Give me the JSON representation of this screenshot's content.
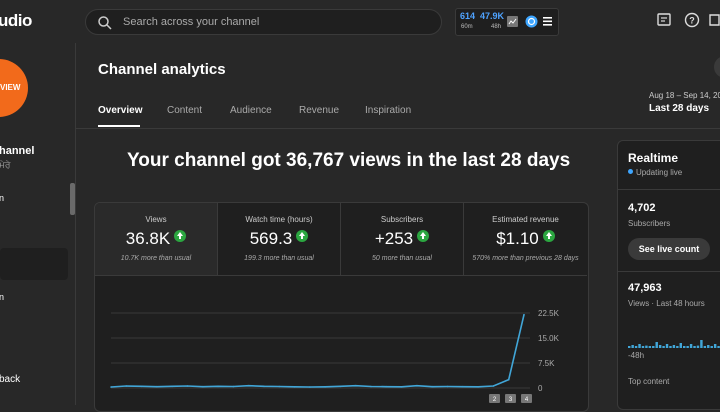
{
  "header": {
    "logo_text": "udio",
    "search_placeholder": "Search across your channel",
    "stats_widget": {
      "value1": "614",
      "label1": "60m",
      "value2": "47.9K",
      "label2": "48h"
    },
    "icons": [
      "search-icon",
      "chart-icon",
      "globe-icon",
      "menu-icon",
      "feedback-icon",
      "help-icon",
      "more-icon"
    ]
  },
  "sidebar": {
    "avatar_text": "VIEW",
    "channel_name": "hannel",
    "channel_sub": "ਮੇਰੇ",
    "item_a": "n",
    "item_b": "n",
    "item_c": "back"
  },
  "page": {
    "title": "Channel analytics",
    "tabs": [
      {
        "label": "Overview"
      },
      {
        "label": "Content"
      },
      {
        "label": "Audience"
      },
      {
        "label": "Revenue"
      },
      {
        "label": "Inspiration"
      }
    ],
    "date_range": "Aug 18 – Sep 14, 20",
    "date_period": "Last 28 days",
    "headline": "Your channel got 36,767 views in the last 28 days"
  },
  "metrics": [
    {
      "label": "Views",
      "value": "36.8K",
      "sub": "10.7K more than usual"
    },
    {
      "label": "Watch time (hours)",
      "value": "569.3",
      "sub": "199.3 more than usual"
    },
    {
      "label": "Subscribers",
      "value": "+253",
      "sub": "50 more than usual"
    },
    {
      "label": "Estimated revenue",
      "value": "$1.10",
      "sub": "570% more than previous 28 days"
    }
  ],
  "chart_data": {
    "type": "line",
    "ylim": [
      0,
      22500
    ],
    "yticks": [
      "22.5K",
      "15.0K",
      "7.5K",
      "0"
    ],
    "x": [
      1,
      2,
      3,
      4,
      5,
      6,
      7,
      8,
      9,
      10,
      11,
      12,
      13,
      14,
      15,
      16,
      17,
      18,
      19,
      20,
      21,
      22,
      23,
      24,
      25,
      26,
      27,
      28
    ],
    "series": [
      {
        "values": [
          300,
          600,
          500,
          400,
          500,
          600,
          400,
          500,
          450,
          700,
          500,
          450,
          350,
          300,
          350,
          500,
          700,
          450,
          400,
          350,
          700,
          400,
          450,
          400,
          350,
          600,
          2500,
          22000
        ]
      }
    ],
    "grid": true,
    "x_markers": [
      "2",
      "3",
      "4"
    ]
  },
  "realtime": {
    "title": "Realtime",
    "status": "Updating live",
    "subs_value": "4,702",
    "subs_label": "Subscribers",
    "live_button": "See live count",
    "views_value": "47,963",
    "views_label": "Views · Last 48 hours",
    "axis_label": "-48h",
    "top_content_label": "Top content",
    "bars": [
      0.1,
      0.15,
      0.1,
      0.2,
      0.1,
      0.12,
      0.1,
      0.1,
      0.3,
      0.15,
      0.1,
      0.2,
      0.1,
      0.15,
      0.1,
      0.25,
      0.1,
      0.1,
      0.2,
      0.1,
      0.12,
      0.4,
      0.1,
      0.15,
      0.1,
      0.2,
      0.1,
      0.5,
      0.15,
      0.3,
      0.1,
      0.2
    ]
  }
}
